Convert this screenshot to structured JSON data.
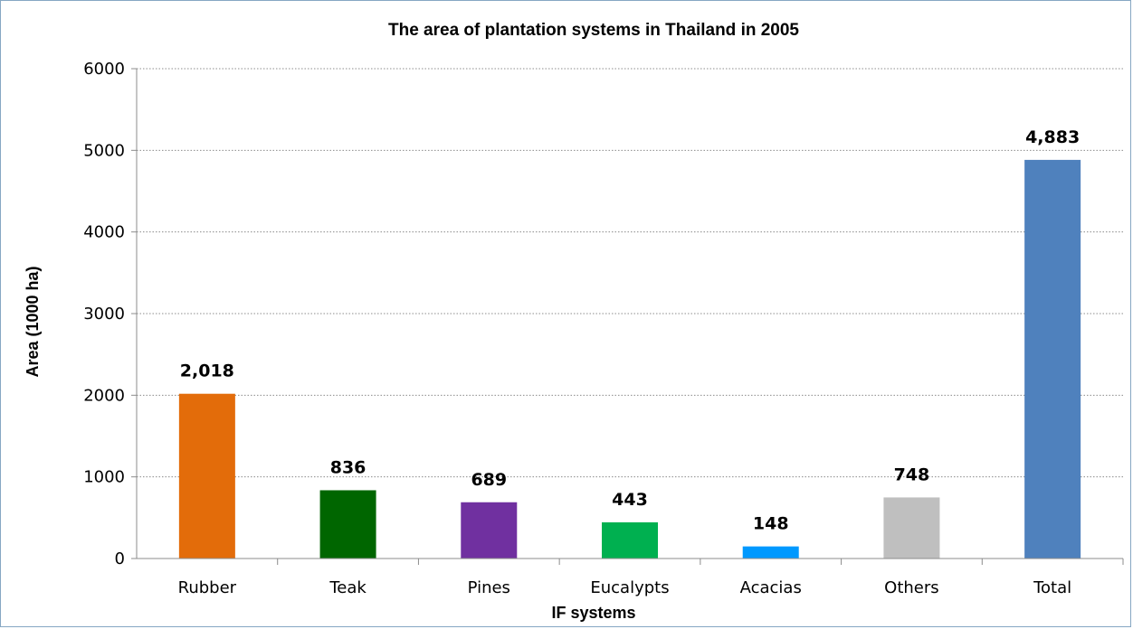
{
  "chart_data": {
    "type": "bar",
    "title": "The area of plantation systems in Thailand in 2005",
    "xlabel": "IF systems",
    "ylabel": "Area (1000 ha)",
    "ylim": [
      0,
      6000
    ],
    "yticks": [
      "0",
      "1000",
      "2000",
      "3000",
      "4000",
      "5000",
      "6000"
    ],
    "ytick_values": [
      0,
      1000,
      2000,
      3000,
      4000,
      5000,
      6000
    ],
    "grid": "horizontal dotted",
    "legend": "none",
    "categories": [
      "Rubber",
      "Teak",
      "Pines",
      "Eucalypts",
      "Acacias",
      "Others",
      "Total"
    ],
    "values": [
      2018,
      836,
      689,
      443,
      148,
      748,
      4883
    ],
    "data_labels": [
      "2,018",
      "836",
      "689",
      "443",
      "148",
      "748",
      "4,883"
    ],
    "colors": [
      "#e36c0a",
      "#006600",
      "#7030a0",
      "#00b050",
      "#0099ff",
      "#bfbfbf",
      "#4f81bd"
    ]
  }
}
